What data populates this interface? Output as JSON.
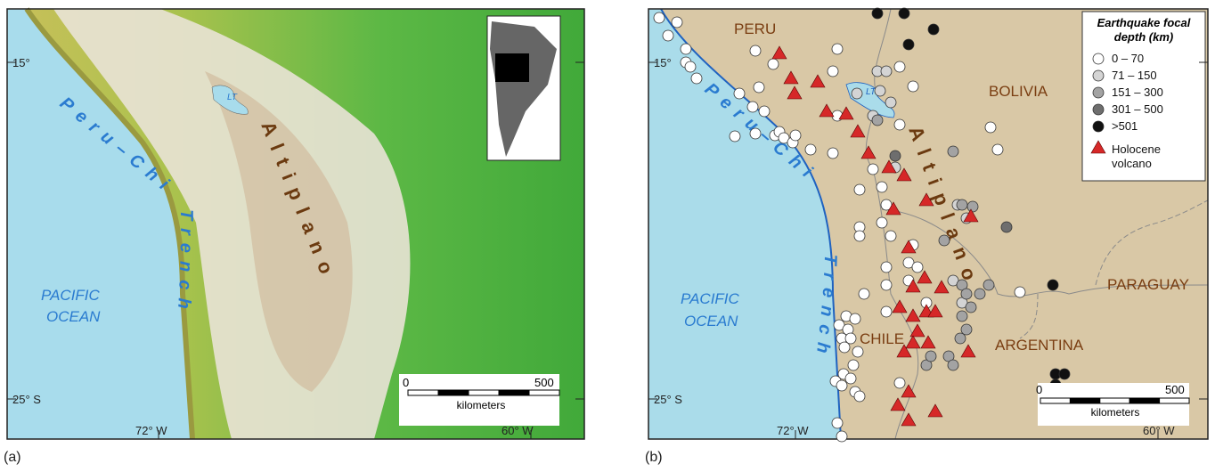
{
  "panel_a": {
    "label": "(a)",
    "lat_15": "15°",
    "lat_25": "25° S",
    "lon_72": "72° W",
    "lon_60": "60° W",
    "trench": [
      "Peru–Chile",
      "Trench"
    ],
    "altiplano": "Altiplano",
    "ocean": [
      "PACIFIC",
      "OCEAN"
    ],
    "lake": "LT",
    "scale": {
      "start": "0",
      "end": "500",
      "unit": "kilometers"
    }
  },
  "panel_b": {
    "label": "(b)",
    "lat_15": "15°",
    "lat_25": "25° S",
    "lon_72": "72° W",
    "lon_60": "60° W",
    "trench": [
      "Peru–Chile",
      "Trench"
    ],
    "altiplano": "Altiplano",
    "ocean": [
      "PACIFIC",
      "OCEAN"
    ],
    "lake": "LT",
    "countries": {
      "peru": "PERU",
      "bolivia": "BOLIVIA",
      "paraguay": "PARAGUAY",
      "argentina": "ARGENTINA",
      "chile": "CHILE"
    },
    "scale": {
      "start": "0",
      "end": "500",
      "unit": "kilometers"
    },
    "legend": {
      "title": [
        "Earthquake focal",
        "depth (km)"
      ],
      "items": [
        {
          "label": "0 – 70",
          "color": "#ffffff"
        },
        {
          "label": "71 – 150",
          "color": "#d4d4d4"
        },
        {
          "label": "151 – 300",
          "color": "#a3a3a3"
        },
        {
          "label": "301 – 500",
          "color": "#6e6e6e"
        },
        {
          "label": ">501",
          "color": "#111111"
        }
      ],
      "volcano": {
        "label": [
          "Holocene",
          "volcano"
        ],
        "color": "#d62828"
      }
    }
  }
}
